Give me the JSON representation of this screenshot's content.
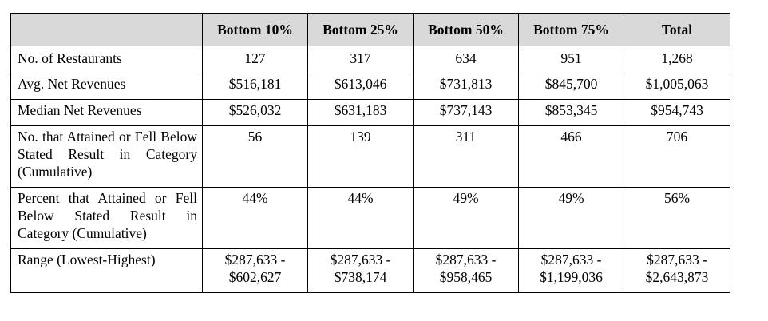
{
  "table": {
    "headers": [
      "",
      "Bottom 10%",
      "Bottom 25%",
      "Bottom 50%",
      "Bottom 75%",
      "Total"
    ],
    "rows": [
      {
        "label": "No. of Restaurants",
        "values": [
          "127",
          "317",
          "634",
          "951",
          "1,268"
        ]
      },
      {
        "label": "Avg. Net Revenues",
        "values": [
          "$516,181",
          "$613,046",
          "$731,813",
          "$845,700",
          "$1,005,063"
        ]
      },
      {
        "label": "Median Net Revenues",
        "values": [
          "$526,032",
          "$631,183",
          "$737,143",
          "$853,345",
          "$954,743"
        ]
      },
      {
        "label": "No. that Attained or Fell Below Stated Result in Category (Cumulative)",
        "values": [
          "56",
          "139",
          "311",
          "466",
          "706"
        ]
      },
      {
        "label": "Percent that Attained or Fell Below Stated Result in Category (Cumulative)",
        "values": [
          "44%",
          "44%",
          "49%",
          "49%",
          "56%"
        ]
      },
      {
        "label": "Range (Lowest-Highest)",
        "ranges": [
          {
            "low": "$287,633 -",
            "high": "$602,627"
          },
          {
            "low": "$287,633 -",
            "high": "$738,174"
          },
          {
            "low": "$287,633 -",
            "high": "$958,465"
          },
          {
            "low": "$287,633 -",
            "high": "$1,199,036"
          },
          {
            "low": "$287,633 -",
            "high": "$2,643,873"
          }
        ]
      }
    ]
  }
}
